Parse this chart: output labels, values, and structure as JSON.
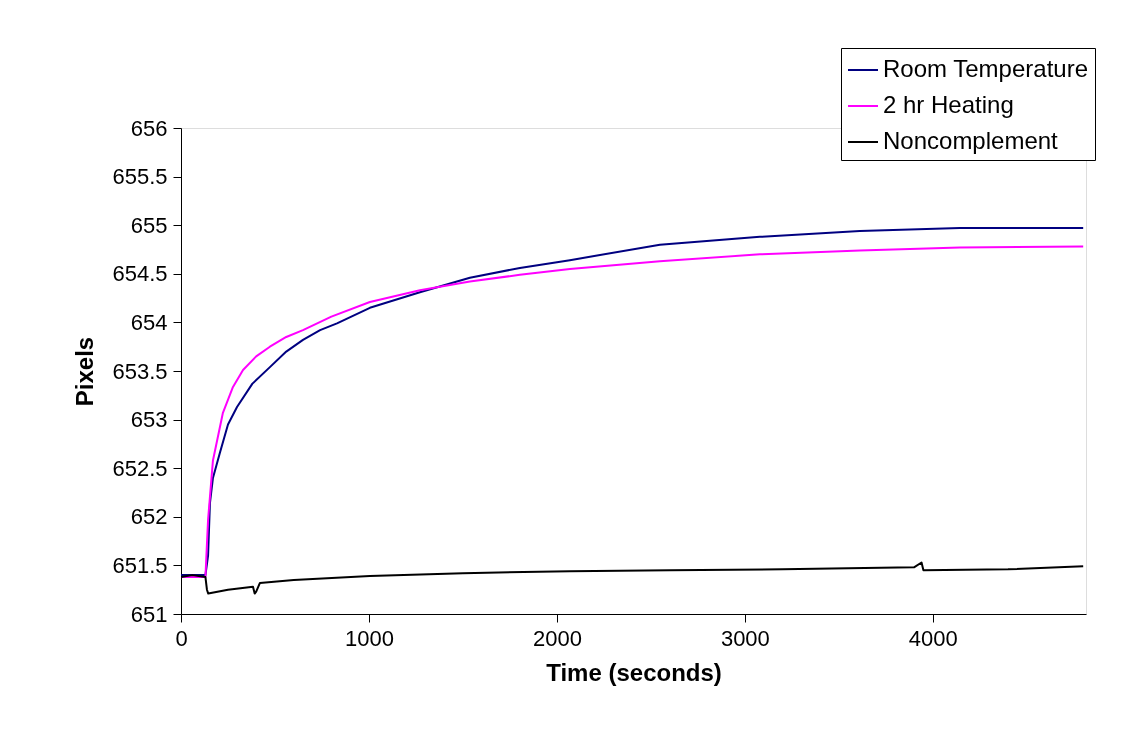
{
  "chart_data": {
    "type": "line",
    "xlabel": "Time (seconds)",
    "ylabel": "Pixels",
    "xlim": [
      0,
      4815
    ],
    "xticks": [
      0,
      1000,
      2000,
      3000,
      4000
    ],
    "ylim": [
      651,
      656
    ],
    "yticks": [
      651,
      651.5,
      652,
      652.5,
      653,
      653.5,
      654,
      654.5,
      655,
      655.5,
      656
    ],
    "grid": false,
    "legend": "top right",
    "marker": "none",
    "line_style": "solid",
    "series": [
      {
        "name": "Room Temperature",
        "color": "#000080",
        "x": [
          0,
          60,
          130,
          144,
          154,
          170,
          207,
          250,
          298,
          380,
          473,
          560,
          649,
          740,
          830,
          1005,
          1271,
          1537,
          1803,
          2069,
          2548,
          3080,
          3612,
          4144,
          4800
        ],
        "values": [
          651.4,
          651.4,
          651.4,
          651.6,
          652.14,
          652.4,
          652.66,
          652.95,
          653.13,
          653.37,
          653.54,
          653.7,
          653.82,
          653.92,
          653.99,
          654.15,
          654.31,
          654.46,
          654.56,
          654.64,
          654.8,
          654.88,
          654.94,
          654.97,
          654.97
        ]
      },
      {
        "name": "2 hr Heating",
        "color": "#ff00ff",
        "x": [
          0,
          60,
          130,
          144,
          170,
          223,
          275,
          330,
          400,
          473,
          560,
          649,
          800,
          1005,
          1271,
          1537,
          1803,
          2069,
          2548,
          3080,
          3612,
          4144,
          4800
        ],
        "values": [
          651.38,
          651.38,
          651.38,
          651.97,
          652.58,
          653.07,
          653.33,
          653.51,
          653.65,
          653.75,
          653.85,
          653.92,
          654.06,
          654.21,
          654.33,
          654.42,
          654.49,
          654.55,
          654.63,
          654.7,
          654.74,
          654.77,
          654.78
        ]
      },
      {
        "name": "Noncomplement",
        "color": "#000000",
        "x": [
          0,
          60,
          130,
          138,
          145,
          250,
          383,
          392,
          400,
          420,
          600,
          1005,
          1500,
          2069,
          2600,
          3200,
          3900,
          3940,
          3950,
          4400,
          4800
        ],
        "values": [
          651.38,
          651.4,
          651.38,
          651.25,
          651.21,
          651.25,
          651.28,
          651.21,
          651.23,
          651.32,
          651.35,
          651.39,
          651.42,
          651.44,
          651.45,
          651.46,
          651.48,
          651.53,
          651.45,
          651.46,
          651.49
        ]
      }
    ]
  }
}
